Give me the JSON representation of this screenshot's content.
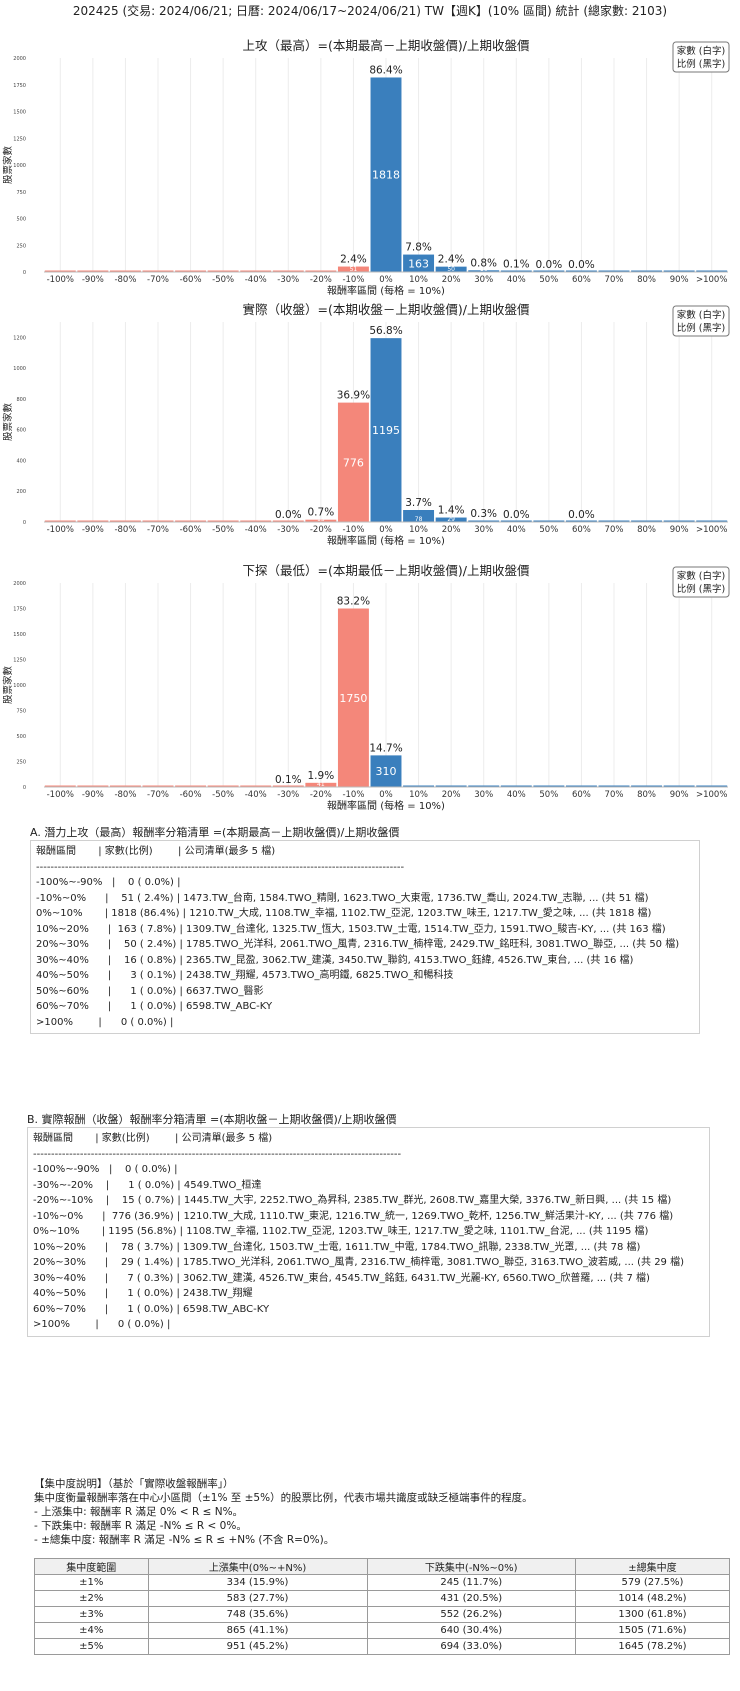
{
  "page_title": "202425 (交易: 2024/06/21; 日曆: 2024/06/17~2024/06/21) TW【週K】(10% 區間) 統計 (總家數: 2103)",
  "legend_lines": [
    "家數 (白字)",
    "比例 (黑字)"
  ],
  "chart_data": [
    {
      "type": "bar",
      "title": "上攻（最高）=(本期最高－上期收盤價)/上期收盤價",
      "xlabel": "報酬率區間 (每格 = 10%)",
      "ylabel": "股票家數",
      "categories": [
        "-100%",
        "-90%",
        "-80%",
        "-70%",
        "-60%",
        "-50%",
        "-40%",
        "-30%",
        "-20%",
        "-10%",
        "0%",
        "10%",
        "20%",
        "30%",
        "40%",
        "50%",
        "60%",
        "70%",
        "80%",
        "90%",
        ">100%"
      ],
      "values": [
        0,
        0,
        0,
        0,
        0,
        0,
        0,
        0,
        0,
        51,
        1818,
        163,
        50,
        16,
        3,
        1,
        1,
        0,
        0,
        0,
        0
      ],
      "pct_labels": [
        "",
        "",
        "",
        "",
        "",
        "",
        "",
        "",
        "",
        "2.4%",
        "86.4%",
        "7.8%",
        "2.4%",
        "0.8%",
        "0.1%",
        "0.0%",
        "0.0%",
        "",
        "",
        "",
        ""
      ],
      "count_labels": [
        "",
        "",
        "",
        "",
        "",
        "",
        "",
        "",
        "",
        "51",
        "1818",
        "163",
        "50",
        "16",
        "",
        "",
        "",
        "",
        "",
        "",
        ""
      ],
      "colors": [
        "#f4877a",
        "#f4877a",
        "#f4877a",
        "#f4877a",
        "#f4877a",
        "#f4877a",
        "#f4877a",
        "#f4877a",
        "#f4877a",
        "#f4877a",
        "#3a7fbd",
        "#3a7fbd",
        "#3a7fbd",
        "#3a7fbd",
        "#3a7fbd",
        "#3a7fbd",
        "#3a7fbd",
        "#3a7fbd",
        "#3a7fbd",
        "#3a7fbd",
        "#3a7fbd"
      ],
      "ylim": [
        0,
        2000
      ],
      "yticks": [
        "0",
        "250",
        "500",
        "750",
        "1000",
        "1250",
        "1500",
        "1750",
        "2000"
      ],
      "grid": true,
      "legend": "top-right"
    },
    {
      "type": "bar",
      "title": "實際（收盤）=(本期收盤－上期收盤價)/上期收盤價",
      "xlabel": "報酬率區間 (每格 = 10%)",
      "ylabel": "股票家數",
      "categories": [
        "-100%",
        "-90%",
        "-80%",
        "-70%",
        "-60%",
        "-50%",
        "-40%",
        "-30%",
        "-20%",
        "-10%",
        "0%",
        "10%",
        "20%",
        "30%",
        "40%",
        "50%",
        "60%",
        "70%",
        "80%",
        "90%",
        ">100%"
      ],
      "values": [
        0,
        0,
        0,
        0,
        0,
        0,
        0,
        1,
        15,
        776,
        1195,
        78,
        29,
        7,
        1,
        0,
        1,
        0,
        0,
        0,
        0
      ],
      "pct_labels": [
        "",
        "",
        "",
        "",
        "",
        "",
        "",
        "0.0%",
        "0.7%",
        "36.9%",
        "56.8%",
        "3.7%",
        "1.4%",
        "0.3%",
        "0.0%",
        "",
        "0.0%",
        "",
        "",
        "",
        ""
      ],
      "count_labels": [
        "",
        "",
        "",
        "",
        "",
        "",
        "",
        "",
        "15",
        "776",
        "1195",
        "78",
        "29",
        "",
        "",
        "",
        "",
        "",
        "",
        "",
        ""
      ],
      "colors": [
        "#f4877a",
        "#f4877a",
        "#f4877a",
        "#f4877a",
        "#f4877a",
        "#f4877a",
        "#f4877a",
        "#f4877a",
        "#f4877a",
        "#f4877a",
        "#3a7fbd",
        "#3a7fbd",
        "#3a7fbd",
        "#3a7fbd",
        "#3a7fbd",
        "#3a7fbd",
        "#3a7fbd",
        "#3a7fbd",
        "#3a7fbd",
        "#3a7fbd",
        "#3a7fbd"
      ],
      "ylim": [
        0,
        1300
      ],
      "yticks": [
        "0",
        "200",
        "400",
        "600",
        "800",
        "1000",
        "1200"
      ],
      "grid": true,
      "legend": "top-right"
    },
    {
      "type": "bar",
      "title": "下探（最低）=(本期最低－上期收盤價)/上期收盤價",
      "xlabel": "報酬率區間 (每格 = 10%)",
      "ylabel": "股票家數",
      "categories": [
        "-100%",
        "-90%",
        "-80%",
        "-70%",
        "-60%",
        "-50%",
        "-40%",
        "-30%",
        "-20%",
        "-10%",
        "0%",
        "10%",
        "20%",
        "30%",
        "40%",
        "50%",
        "60%",
        "70%",
        "80%",
        "90%",
        ">100%"
      ],
      "values": [
        0,
        0,
        0,
        0,
        0,
        0,
        0,
        2,
        41,
        1750,
        310,
        0,
        0,
        0,
        0,
        0,
        0,
        0,
        0,
        0,
        0
      ],
      "pct_labels": [
        "",
        "",
        "",
        "",
        "",
        "",
        "",
        "0.1%",
        "1.9%",
        "83.2%",
        "14.7%",
        "",
        "",
        "",
        "",
        "",
        "",
        "",
        "",
        "",
        ""
      ],
      "count_labels": [
        "",
        "",
        "",
        "",
        "",
        "",
        "",
        "",
        "41",
        "1750",
        "310",
        "",
        "",
        "",
        "",
        "",
        "",
        "",
        "",
        "",
        ""
      ],
      "colors": [
        "#f4877a",
        "#f4877a",
        "#f4877a",
        "#f4877a",
        "#f4877a",
        "#f4877a",
        "#f4877a",
        "#f4877a",
        "#f4877a",
        "#f4877a",
        "#3a7fbd",
        "#3a7fbd",
        "#3a7fbd",
        "#3a7fbd",
        "#3a7fbd",
        "#3a7fbd",
        "#3a7fbd",
        "#3a7fbd",
        "#3a7fbd",
        "#3a7fbd",
        "#3a7fbd"
      ],
      "ylim": [
        0,
        2000
      ],
      "yticks": [
        "0",
        "250",
        "500",
        "750",
        "1000",
        "1250",
        "1500",
        "1750",
        "2000"
      ],
      "grid": true,
      "legend": "top-right"
    }
  ],
  "list_a": {
    "title": "A. 潛力上攻（最高）報酬率分箱清單 =(本期最高－上期收盤價)/上期收盤價",
    "lines": [
      "報酬區間       | 家數(比例)        | 公司清單(最多 5 檔)",
      "------------------------------------------------------------------------------------------------------",
      "-100%~-90%   |    0 ( 0.0%) |",
      "-10%~0%      |    51 ( 2.4%) | 1473.TW_台南, 1584.TWO_精剛, 1623.TWO_大東電, 1736.TW_喬山, 2024.TW_志聯, ... (共 51 檔)",
      "0%~10%       | 1818 (86.4%) | 1210.TW_大成, 1108.TW_幸福, 1102.TW_亞泥, 1203.TW_味王, 1217.TW_愛之味, ... (共 1818 檔)",
      "10%~20%      |  163 ( 7.8%) | 1309.TW_台達化, 1325.TW_恆大, 1503.TW_士電, 1514.TW_亞力, 1591.TWO_駿吉-KY, ... (共 163 檔)",
      "20%~30%      |    50 ( 2.4%) | 1785.TWO_光洋科, 2061.TWO_風青, 2316.TW_楠梓電, 2429.TW_銘旺科, 3081.TWO_聯亞, ... (共 50 檔)",
      "30%~40%      |    16 ( 0.8%) | 2365.TW_昆盈, 3062.TW_建漢, 3450.TW_聯鈞, 4153.TWO_鈺緯, 4526.TW_東台, ... (共 16 檔)",
      "40%~50%      |      3 ( 0.1%) | 2438.TW_翔耀, 4573.TWO_高明鐵, 6825.TWO_和暢科技",
      "50%~60%      |      1 ( 0.0%) | 6637.TWO_醫影",
      "60%~70%      |      1 ( 0.0%) | 6598.TW_ABC-KY",
      ">100%        |      0 ( 0.0%) |"
    ]
  },
  "list_b": {
    "title": "B. 實際報酬（收盤）報酬率分箱清單 =(本期收盤－上期收盤價)/上期收盤價",
    "lines": [
      "報酬區間       | 家數(比例)        | 公司清單(最多 5 檔)",
      "------------------------------------------------------------------------------------------------------",
      "-100%~-90%   |    0 ( 0.0%) |",
      "-30%~-20%    |      1 ( 0.0%) | 4549.TWO_桓達",
      "-20%~-10%    |    15 ( 0.7%) | 1445.TW_大宇, 2252.TWO_為昇科, 2385.TW_群光, 2608.TW_嘉里大榮, 3376.TW_新日興, ... (共 15 檔)",
      "-10%~0%      |  776 (36.9%) | 1210.TW_大成, 1110.TW_東泥, 1216.TW_統一, 1269.TWO_乾杯, 1256.TW_鮮活果汁-KY, ... (共 776 檔)",
      "0%~10%       | 1195 (56.8%) | 1108.TW_幸福, 1102.TW_亞泥, 1203.TW_味王, 1217.TW_愛之味, 1101.TW_台泥, ... (共 1195 檔)",
      "10%~20%      |    78 ( 3.7%) | 1309.TW_台達化, 1503.TW_士電, 1611.TW_中電, 1784.TWO_訊聯, 2338.TW_光罩, ... (共 78 檔)",
      "20%~30%      |    29 ( 1.4%) | 1785.TWO_光洋科, 2061.TWO_風青, 2316.TW_楠梓電, 3081.TWO_聯亞, 3163.TWO_波若威, ... (共 29 檔)",
      "30%~40%      |      7 ( 0.3%) | 3062.TW_建漢, 4526.TW_東台, 4545.TW_銘鈺, 6431.TW_光麗-KY, 6560.TWO_欣普羅, ... (共 7 檔)",
      "40%~50%      |      1 ( 0.0%) | 2438.TW_翔耀",
      "60%~70%      |      1 ( 0.0%) | 6598.TW_ABC-KY",
      ">100%        |      0 ( 0.0%) |"
    ]
  },
  "concentration": {
    "lines": [
      "【集中度說明】（基於「實際收盤報酬率」）",
      "集中度衡量報酬率落在中心小區間（±1% 至 ±5%）的股票比例，代表市場共識度或缺乏極端事件的程度。",
      "- 上漲集中: 報酬率 R 滿足 0% < R ≤ N%。",
      "- 下跌集中: 報酬率 R 滿足 -N% ≤ R < 0%。",
      "- ±總集中度: 報酬率 R 滿足 -N% ≤ R ≤ +N% (不含 R=0%)。"
    ],
    "headers": [
      "集中度範圍",
      "上漲集中(0%~+N%)",
      "下跌集中(-N%~0%)",
      "±總集中度"
    ],
    "rows": [
      [
        "±1%",
        "334 (15.9%)",
        "245 (11.7%)",
        "579 (27.5%)"
      ],
      [
        "±2%",
        "583 (27.7%)",
        "431 (20.5%)",
        "1014 (48.2%)"
      ],
      [
        "±3%",
        "748 (35.6%)",
        "552 (26.2%)",
        "1300 (61.8%)"
      ],
      [
        "±4%",
        "865 (41.1%)",
        "640 (30.4%)",
        "1505 (71.6%)"
      ],
      [
        "±5%",
        "951 (45.2%)",
        "694 (33.0%)",
        "1645 (78.2%)"
      ]
    ]
  }
}
